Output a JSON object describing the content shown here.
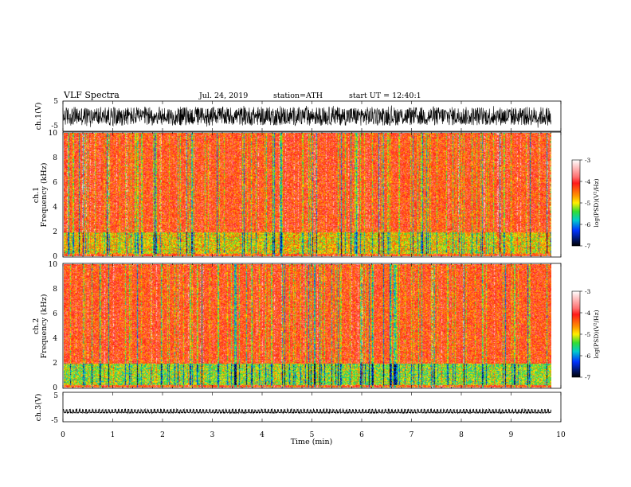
{
  "header": {
    "title": "VLF Spectra",
    "date": "Jul. 24, 2019",
    "station": "station=ATH",
    "start": "start UT = 12:40:1"
  },
  "chart_data": [
    {
      "type": "line",
      "panel": "ch1-waveform",
      "ylabel": "ch.1(V)",
      "ylim": [
        -5,
        5
      ],
      "yticks": [
        "5",
        "-5"
      ],
      "xlim": [
        0,
        10
      ],
      "note": "dense broadband signal between about -3 V and +3 V"
    },
    {
      "type": "heatmap",
      "panel": "ch1-spectrogram",
      "ylabel_line1": "ch.1",
      "ylabel_line2": "Frequency (kHz)",
      "ylim": [
        0,
        10
      ],
      "yticks": [
        "0",
        "2",
        "4",
        "6",
        "8",
        "10"
      ],
      "xlim": [
        0,
        9.8
      ],
      "colorbar": {
        "label": "log(PSD)(V²/Hz)",
        "range": [
          -7,
          -3
        ],
        "ticks": [
          "-3",
          "-4",
          "-5",
          "-6",
          "-7"
        ]
      }
    },
    {
      "type": "heatmap",
      "panel": "ch2-spectrogram",
      "ylabel_line1": "ch.2",
      "ylabel_line2": "Frequency (kHz)",
      "ylim": [
        0,
        10
      ],
      "yticks": [
        "0",
        "2",
        "4",
        "6",
        "8",
        "10"
      ],
      "xlim": [
        0,
        9.8
      ],
      "colorbar": {
        "label": "log(PSD)(V²/Hz)",
        "range": [
          -7,
          -3
        ],
        "ticks": [
          "-3",
          "-4",
          "-5",
          "-6",
          "-7"
        ]
      }
    },
    {
      "type": "line",
      "panel": "ch3-waveform",
      "ylabel": "ch.3(V)",
      "ylim": [
        -5,
        5
      ],
      "yticks": [
        "5",
        "-5"
      ],
      "xlim": [
        0,
        10
      ],
      "xlabel": "Time (min)",
      "xticks": [
        "0",
        "1",
        "2",
        "3",
        "4",
        "5",
        "6",
        "7",
        "8",
        "9",
        "10"
      ],
      "note": "pulsed signal near -1.5 V"
    }
  ]
}
